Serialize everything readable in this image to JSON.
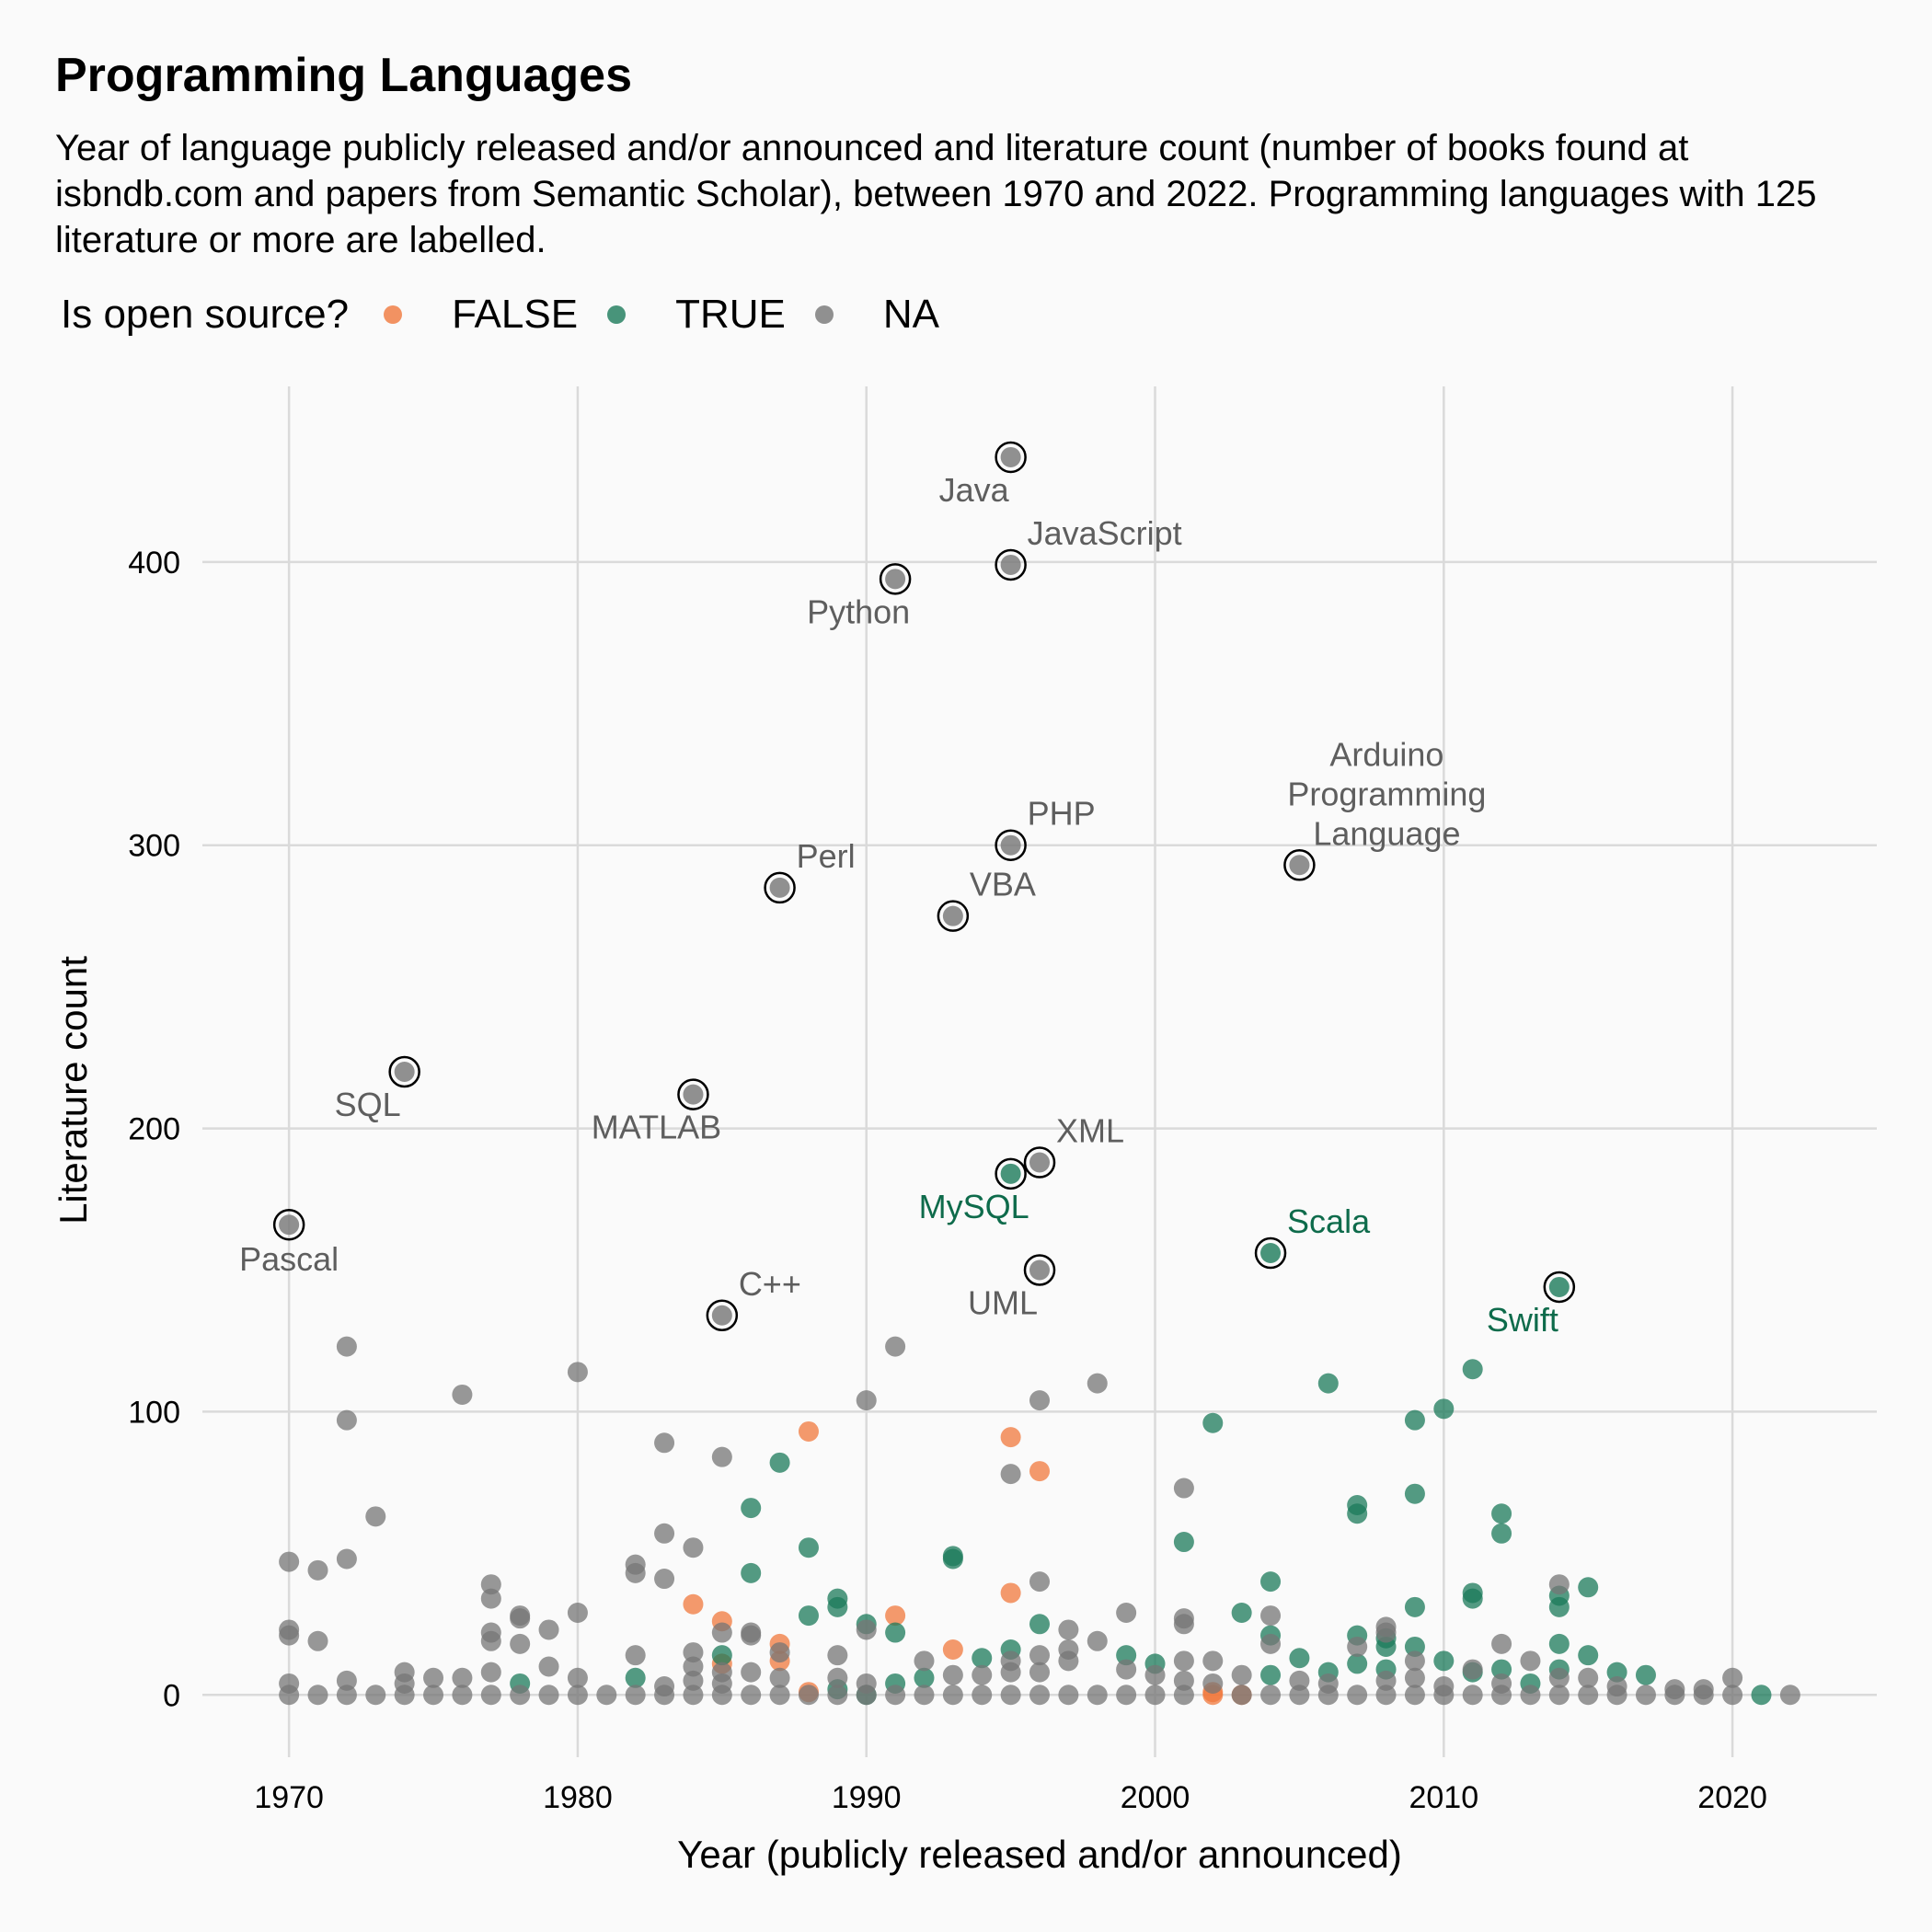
{
  "title": "Programming Languages",
  "subtitle": "Year of language publicly released and/or announced and literature count (number of books found at isbndb.com and papers from Semantic Scholar), between 1970 and 2022. Programming languages with 125 literature or more are labelled.",
  "legend": {
    "title": "Is open source?",
    "items": [
      {
        "label": "FALSE",
        "color": "#f0783c"
      },
      {
        "label": "TRUE",
        "color": "#1b7a5a"
      },
      {
        "label": "NA",
        "color": "#757575"
      }
    ]
  },
  "chart_data": {
    "type": "scatter",
    "title": "Programming Languages",
    "xlabel": "Year (publicly released and/or announced)",
    "ylabel": "Literature count",
    "xlim": [
      1967,
      2025
    ],
    "ylim": [
      -22,
      462
    ],
    "xticks": [
      1970,
      1980,
      1990,
      2000,
      2010,
      2020
    ],
    "yticks": [
      0,
      100,
      200,
      300,
      400
    ],
    "grid": true,
    "legend_position": "top-left",
    "colors": {
      "FALSE": "#f0783c",
      "TRUE": "#1b7a5a",
      "NA": "#757575"
    },
    "label_colors": {
      "TRUE": "#0e6b4b",
      "NA": "#5e5e5e"
    },
    "labelled": [
      {
        "label": "Java",
        "x": 1995,
        "y": 437,
        "group": "NA",
        "align": "below-left"
      },
      {
        "label": "JavaScript",
        "x": 1995,
        "y": 399,
        "group": "NA",
        "align": "above-right"
      },
      {
        "label": "Python",
        "x": 1991,
        "y": 394,
        "group": "NA",
        "align": "below-left"
      },
      {
        "label": "PHP",
        "x": 1995,
        "y": 300,
        "group": "NA",
        "align": "above-right"
      },
      {
        "label": "Arduino\nProgramming\nLanguage",
        "x": 2005,
        "y": 293,
        "group": "NA",
        "align": "above-right"
      },
      {
        "label": "Perl",
        "x": 1987,
        "y": 285,
        "group": "NA",
        "align": "above-right"
      },
      {
        "label": "VBA",
        "x": 1993,
        "y": 275,
        "group": "NA",
        "align": "above-right"
      },
      {
        "label": "SQL",
        "x": 1974,
        "y": 220,
        "group": "NA",
        "align": "below-left"
      },
      {
        "label": "MATLAB",
        "x": 1984,
        "y": 212,
        "group": "NA",
        "align": "below-left"
      },
      {
        "label": "XML",
        "x": 1996,
        "y": 188,
        "group": "NA",
        "align": "above-right"
      },
      {
        "label": "MySQL",
        "x": 1995,
        "y": 184,
        "group": "TRUE",
        "align": "below-left"
      },
      {
        "label": "Pascal",
        "x": 1970,
        "y": 166,
        "group": "NA",
        "align": "below"
      },
      {
        "label": "Scala",
        "x": 2004,
        "y": 156,
        "group": "TRUE",
        "align": "above-right"
      },
      {
        "label": "UML",
        "x": 1996,
        "y": 150,
        "group": "NA",
        "align": "below-left"
      },
      {
        "label": "Swift",
        "x": 2014,
        "y": 144,
        "group": "TRUE",
        "align": "below-left"
      },
      {
        "label": "C++",
        "x": 1985,
        "y": 134,
        "group": "NA",
        "align": "above-right"
      }
    ],
    "series": [
      {
        "name": "FALSE",
        "points": [
          [
            1984,
            32
          ],
          [
            1985,
            26
          ],
          [
            1985,
            11
          ],
          [
            1987,
            18
          ],
          [
            1987,
            12
          ],
          [
            1988,
            93
          ],
          [
            1988,
            1
          ],
          [
            1991,
            28
          ],
          [
            1993,
            16
          ],
          [
            1995,
            91
          ],
          [
            1995,
            36
          ],
          [
            1996,
            79
          ],
          [
            2002,
            1
          ],
          [
            2002,
            0
          ],
          [
            2003,
            0
          ]
        ]
      },
      {
        "name": "TRUE",
        "points": [
          [
            1978,
            4
          ],
          [
            1982,
            6
          ],
          [
            1985,
            14
          ],
          [
            1986,
            66
          ],
          [
            1986,
            43
          ],
          [
            1987,
            82
          ],
          [
            1988,
            52
          ],
          [
            1988,
            28
          ],
          [
            1989,
            34
          ],
          [
            1989,
            31
          ],
          [
            1989,
            2
          ],
          [
            1990,
            25
          ],
          [
            1990,
            0
          ],
          [
            1991,
            22
          ],
          [
            1991,
            4
          ],
          [
            1992,
            6
          ],
          [
            1993,
            49
          ],
          [
            1993,
            48
          ],
          [
            1994,
            13
          ],
          [
            1995,
            16
          ],
          [
            1996,
            25
          ],
          [
            1999,
            14
          ],
          [
            2000,
            11
          ],
          [
            2001,
            54
          ],
          [
            2002,
            96
          ],
          [
            2003,
            29
          ],
          [
            2004,
            40
          ],
          [
            2004,
            21
          ],
          [
            2004,
            7
          ],
          [
            2005,
            13
          ],
          [
            2006,
            110
          ],
          [
            2006,
            8
          ],
          [
            2007,
            67
          ],
          [
            2007,
            64
          ],
          [
            2007,
            21
          ],
          [
            2007,
            11
          ],
          [
            2008,
            20
          ],
          [
            2008,
            17
          ],
          [
            2008,
            9
          ],
          [
            2009,
            97
          ],
          [
            2009,
            71
          ],
          [
            2009,
            31
          ],
          [
            2009,
            17
          ],
          [
            2010,
            101
          ],
          [
            2010,
            12
          ],
          [
            2011,
            115
          ],
          [
            2011,
            36
          ],
          [
            2011,
            34
          ],
          [
            2011,
            8
          ],
          [
            2012,
            64
          ],
          [
            2012,
            57
          ],
          [
            2012,
            9
          ],
          [
            2013,
            4
          ],
          [
            2014,
            35
          ],
          [
            2014,
            31
          ],
          [
            2014,
            18
          ],
          [
            2014,
            9
          ],
          [
            2015,
            38
          ],
          [
            2015,
            14
          ],
          [
            2016,
            8
          ],
          [
            2017,
            7
          ],
          [
            2021,
            0
          ]
        ]
      },
      {
        "name": "NA",
        "points": [
          [
            1970,
            47
          ],
          [
            1970,
            23
          ],
          [
            1970,
            21
          ],
          [
            1970,
            4
          ],
          [
            1970,
            0
          ],
          [
            1971,
            44
          ],
          [
            1971,
            19
          ],
          [
            1971,
            0
          ],
          [
            1972,
            123
          ],
          [
            1972,
            97
          ],
          [
            1972,
            48
          ],
          [
            1972,
            5
          ],
          [
            1972,
            0
          ],
          [
            1973,
            63
          ],
          [
            1973,
            0
          ],
          [
            1974,
            8
          ],
          [
            1974,
            4
          ],
          [
            1974,
            0
          ],
          [
            1975,
            6
          ],
          [
            1975,
            0
          ],
          [
            1976,
            106
          ],
          [
            1976,
            6
          ],
          [
            1976,
            0
          ],
          [
            1977,
            39
          ],
          [
            1977,
            34
          ],
          [
            1977,
            22
          ],
          [
            1977,
            19
          ],
          [
            1977,
            8
          ],
          [
            1977,
            0
          ],
          [
            1978,
            28
          ],
          [
            1978,
            27
          ],
          [
            1978,
            18
          ],
          [
            1978,
            0
          ],
          [
            1979,
            23
          ],
          [
            1979,
            10
          ],
          [
            1979,
            0
          ],
          [
            1980,
            114
          ],
          [
            1980,
            29
          ],
          [
            1980,
            6
          ],
          [
            1980,
            0
          ],
          [
            1981,
            0
          ],
          [
            1982,
            46
          ],
          [
            1982,
            43
          ],
          [
            1982,
            14
          ],
          [
            1982,
            0
          ],
          [
            1983,
            89
          ],
          [
            1983,
            57
          ],
          [
            1983,
            41
          ],
          [
            1983,
            3
          ],
          [
            1983,
            0
          ],
          [
            1984,
            52
          ],
          [
            1984,
            15
          ],
          [
            1984,
            10
          ],
          [
            1984,
            5
          ],
          [
            1984,
            0
          ],
          [
            1985,
            84
          ],
          [
            1985,
            22
          ],
          [
            1985,
            8
          ],
          [
            1985,
            4
          ],
          [
            1985,
            0
          ],
          [
            1986,
            22
          ],
          [
            1986,
            21
          ],
          [
            1986,
            8
          ],
          [
            1986,
            0
          ],
          [
            1987,
            15
          ],
          [
            1987,
            6
          ],
          [
            1987,
            0
          ],
          [
            1988,
            0
          ],
          [
            1989,
            14
          ],
          [
            1989,
            6
          ],
          [
            1989,
            0
          ],
          [
            1990,
            104
          ],
          [
            1990,
            23
          ],
          [
            1990,
            4
          ],
          [
            1990,
            0
          ],
          [
            1991,
            123
          ],
          [
            1991,
            0
          ],
          [
            1992,
            12
          ],
          [
            1992,
            0
          ],
          [
            1993,
            7
          ],
          [
            1993,
            0
          ],
          [
            1994,
            7
          ],
          [
            1994,
            0
          ],
          [
            1995,
            78
          ],
          [
            1995,
            12
          ],
          [
            1995,
            8
          ],
          [
            1995,
            0
          ],
          [
            1996,
            104
          ],
          [
            1996,
            40
          ],
          [
            1996,
            14
          ],
          [
            1996,
            8
          ],
          [
            1996,
            0
          ],
          [
            1997,
            23
          ],
          [
            1997,
            16
          ],
          [
            1997,
            12
          ],
          [
            1997,
            0
          ],
          [
            1998,
            110
          ],
          [
            1998,
            19
          ],
          [
            1998,
            0
          ],
          [
            1999,
            29
          ],
          [
            1999,
            9
          ],
          [
            1999,
            0
          ],
          [
            2000,
            7
          ],
          [
            2000,
            0
          ],
          [
            2001,
            73
          ],
          [
            2001,
            27
          ],
          [
            2001,
            25
          ],
          [
            2001,
            12
          ],
          [
            2001,
            5
          ],
          [
            2001,
            0
          ],
          [
            2002,
            12
          ],
          [
            2002,
            4
          ],
          [
            2003,
            7
          ],
          [
            2003,
            0
          ],
          [
            2004,
            28
          ],
          [
            2004,
            18
          ],
          [
            2004,
            0
          ],
          [
            2005,
            5
          ],
          [
            2005,
            0
          ],
          [
            2006,
            4
          ],
          [
            2006,
            0
          ],
          [
            2007,
            17
          ],
          [
            2007,
            0
          ],
          [
            2008,
            24
          ],
          [
            2008,
            22
          ],
          [
            2008,
            5
          ],
          [
            2008,
            0
          ],
          [
            2009,
            12
          ],
          [
            2009,
            6
          ],
          [
            2009,
            0
          ],
          [
            2010,
            3
          ],
          [
            2010,
            0
          ],
          [
            2011,
            9
          ],
          [
            2011,
            0
          ],
          [
            2012,
            18
          ],
          [
            2012,
            4
          ],
          [
            2012,
            0
          ],
          [
            2013,
            12
          ],
          [
            2013,
            0
          ],
          [
            2014,
            39
          ],
          [
            2014,
            6
          ],
          [
            2014,
            0
          ],
          [
            2015,
            6
          ],
          [
            2015,
            0
          ],
          [
            2016,
            3
          ],
          [
            2016,
            0
          ],
          [
            2017,
            0
          ],
          [
            2018,
            2
          ],
          [
            2018,
            0
          ],
          [
            2019,
            2
          ],
          [
            2019,
            0
          ],
          [
            2020,
            6
          ],
          [
            2020,
            0
          ],
          [
            2022,
            0
          ]
        ]
      }
    ]
  }
}
